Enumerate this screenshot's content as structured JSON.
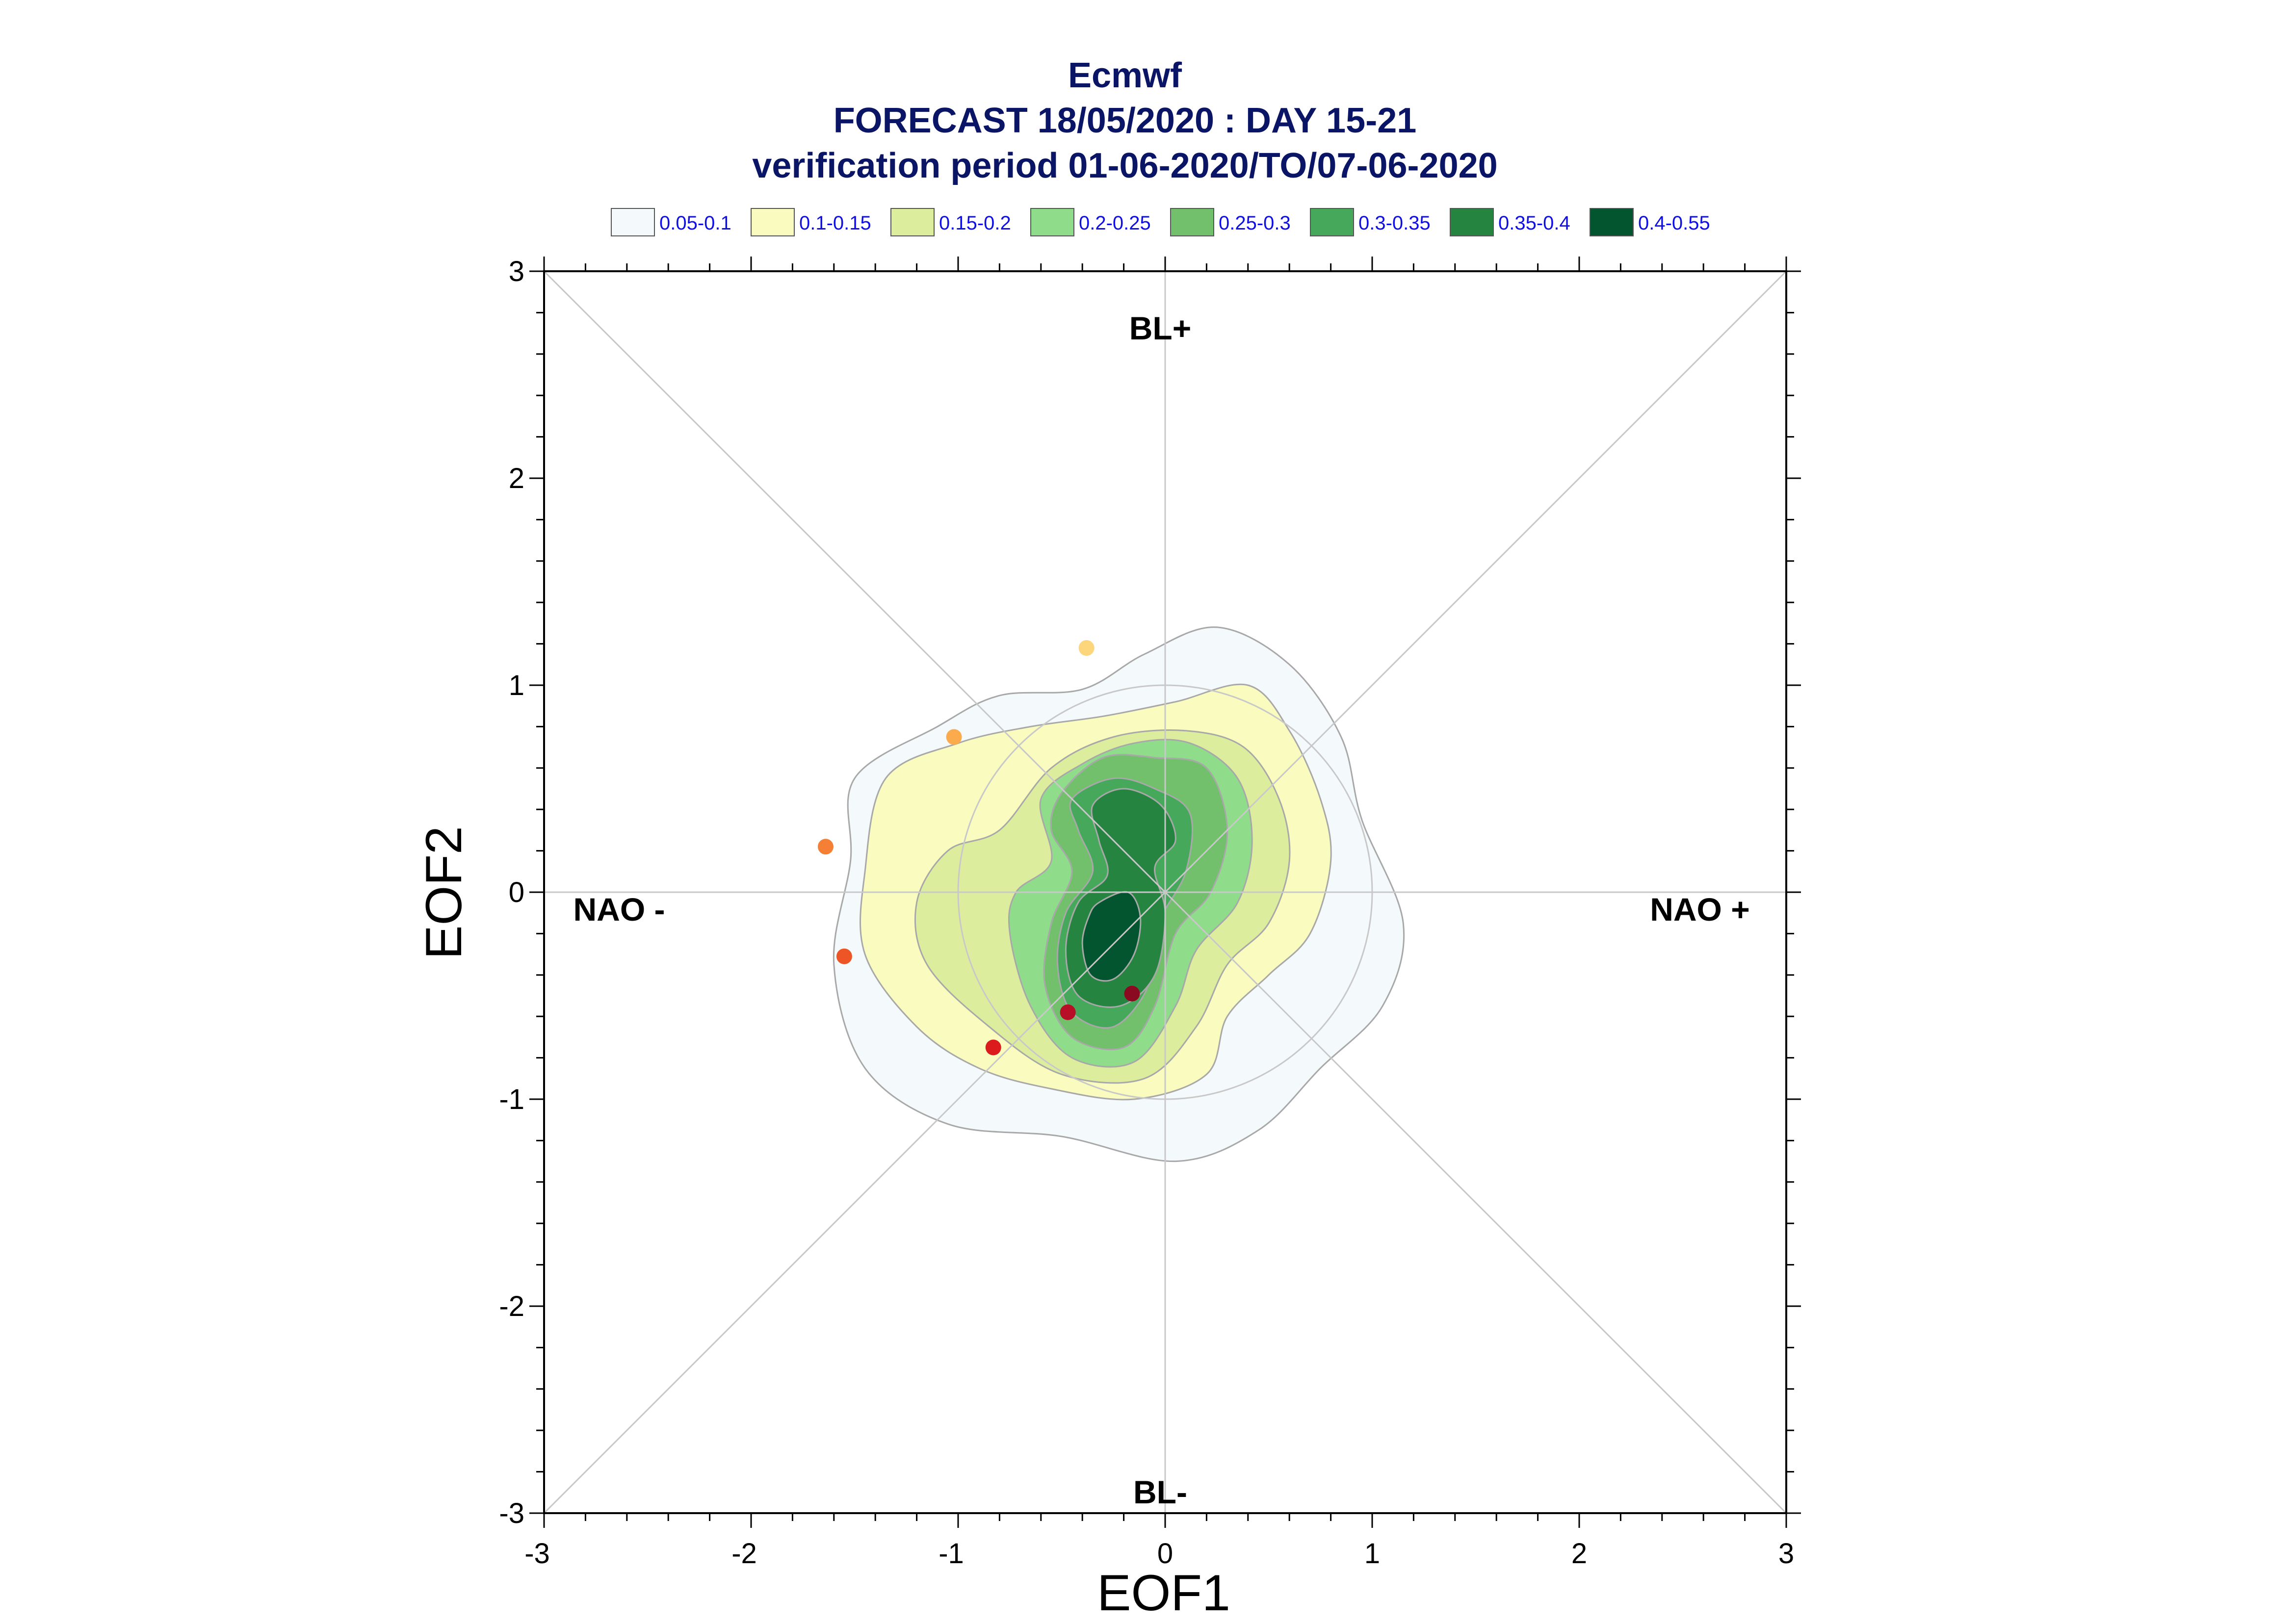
{
  "title": {
    "line1": "Ecmwf",
    "line2": "FORECAST 18/05/2020 : DAY 15-21",
    "line3": "verification period 01-06-2020/TO/07-06-2020"
  },
  "legend": [
    {
      "label": "0.05-0.1",
      "color": "#f4f9fb"
    },
    {
      "label": "0.1-0.15",
      "color": "#f9fbbf"
    },
    {
      "label": "0.15-0.2",
      "color": "#dcee9e"
    },
    {
      "label": "0.2-0.25",
      "color": "#8fdc8a"
    },
    {
      "label": "0.25-0.3",
      "color": "#72bf6c"
    },
    {
      "label": "0.3-0.35",
      "color": "#46a85a"
    },
    {
      "label": "0.35-0.4",
      "color": "#258440"
    },
    {
      "label": "0.4-0.55",
      "color": "#035530"
    }
  ],
  "regimes": {
    "top": "BL+",
    "bottom": "BL-",
    "left": "NAO -",
    "right": "NAO +"
  },
  "chart_data": {
    "type": "scatter",
    "xlabel": "EOF1",
    "ylabel": "EOF2",
    "xlim": [
      -3,
      3
    ],
    "ylim": [
      -3,
      3
    ],
    "xticks": [
      "-3",
      "-2",
      "-1",
      "0",
      "1",
      "2",
      "3"
    ],
    "yticks": [
      "-3",
      "-2",
      "-1",
      "0",
      "1",
      "2",
      "3"
    ],
    "reference_lines": [
      "x=0",
      "y=0",
      "y=x",
      "y=-x"
    ],
    "reference_circle_radius": 1,
    "density_levels": [
      {
        "range": "0.05-0.1",
        "color": "#f4f9fb",
        "contour": [
          [
            -1.5,
            0.55
          ],
          [
            -1.1,
            0.8
          ],
          [
            -0.8,
            0.95
          ],
          [
            -0.4,
            0.98
          ],
          [
            -0.1,
            1.15
          ],
          [
            0.25,
            1.28
          ],
          [
            0.6,
            1.1
          ],
          [
            0.85,
            0.75
          ],
          [
            0.95,
            0.35
          ],
          [
            1.15,
            -0.15
          ],
          [
            1.05,
            -0.55
          ],
          [
            0.75,
            -0.85
          ],
          [
            0.45,
            -1.15
          ],
          [
            0.05,
            -1.3
          ],
          [
            -0.5,
            -1.18
          ],
          [
            -1.05,
            -1.12
          ],
          [
            -1.45,
            -0.85
          ],
          [
            -1.6,
            -0.35
          ],
          [
            -1.52,
            0.15
          ]
        ]
      },
      {
        "range": "0.1-0.15",
        "color": "#f9fbbf",
        "contour": [
          [
            -1.35,
            0.55
          ],
          [
            -1.0,
            0.72
          ],
          [
            -0.65,
            0.8
          ],
          [
            -0.3,
            0.85
          ],
          [
            0.05,
            0.92
          ],
          [
            0.4,
            1.0
          ],
          [
            0.6,
            0.78
          ],
          [
            0.75,
            0.45
          ],
          [
            0.8,
            0.15
          ],
          [
            0.7,
            -0.2
          ],
          [
            0.5,
            -0.4
          ],
          [
            0.3,
            -0.6
          ],
          [
            0.2,
            -0.88
          ],
          [
            -0.15,
            -1.0
          ],
          [
            -0.55,
            -0.95
          ],
          [
            -0.9,
            -0.85
          ],
          [
            -1.2,
            -0.65
          ],
          [
            -1.45,
            -0.3
          ],
          [
            -1.45,
            0.1
          ]
        ]
      },
      {
        "range": "0.15-0.2",
        "color": "#dcee9e",
        "contour": [
          [
            -0.8,
            0.3
          ],
          [
            -0.55,
            0.6
          ],
          [
            -0.25,
            0.75
          ],
          [
            0.1,
            0.78
          ],
          [
            0.38,
            0.7
          ],
          [
            0.55,
            0.45
          ],
          [
            0.6,
            0.15
          ],
          [
            0.5,
            -0.15
          ],
          [
            0.3,
            -0.35
          ],
          [
            0.15,
            -0.65
          ],
          [
            -0.1,
            -0.9
          ],
          [
            -0.5,
            -0.88
          ],
          [
            -0.85,
            -0.65
          ],
          [
            -1.15,
            -0.35
          ],
          [
            -1.2,
            -0.05
          ],
          [
            -1.05,
            0.2
          ]
        ]
      },
      {
        "range": "0.2-0.25",
        "color": "#8fdc8a",
        "contour": [
          [
            -0.6,
            0.45
          ],
          [
            -0.4,
            0.62
          ],
          [
            -0.15,
            0.72
          ],
          [
            0.12,
            0.72
          ],
          [
            0.35,
            0.55
          ],
          [
            0.42,
            0.25
          ],
          [
            0.35,
            -0.05
          ],
          [
            0.15,
            -0.28
          ],
          [
            0.05,
            -0.55
          ],
          [
            -0.15,
            -0.82
          ],
          [
            -0.45,
            -0.8
          ],
          [
            -0.65,
            -0.55
          ],
          [
            -0.75,
            -0.2
          ],
          [
            -0.72,
            0.0
          ],
          [
            -0.55,
            0.15
          ]
        ]
      },
      {
        "range": "0.25-0.3",
        "color": "#72bf6c",
        "contour": [
          [
            -0.5,
            0.48
          ],
          [
            -0.3,
            0.65
          ],
          [
            -0.05,
            0.65
          ],
          [
            0.2,
            0.6
          ],
          [
            0.3,
            0.3
          ],
          [
            0.22,
            0.0
          ],
          [
            0.05,
            -0.2
          ],
          [
            -0.05,
            -0.55
          ],
          [
            -0.2,
            -0.75
          ],
          [
            -0.45,
            -0.7
          ],
          [
            -0.58,
            -0.45
          ],
          [
            -0.55,
            -0.15
          ],
          [
            -0.45,
            0.1
          ],
          [
            -0.55,
            0.3
          ]
        ]
      },
      {
        "range": "0.3-0.35",
        "color": "#46a85a",
        "contour": [
          [
            -0.45,
            0.45
          ],
          [
            -0.25,
            0.55
          ],
          [
            -0.05,
            0.5
          ],
          [
            0.12,
            0.38
          ],
          [
            0.1,
            0.1
          ],
          [
            -0.03,
            -0.15
          ],
          [
            -0.08,
            -0.45
          ],
          [
            -0.25,
            -0.65
          ],
          [
            -0.45,
            -0.58
          ],
          [
            -0.52,
            -0.35
          ],
          [
            -0.48,
            -0.1
          ],
          [
            -0.35,
            0.1
          ],
          [
            -0.42,
            0.3
          ]
        ]
      },
      {
        "range": "0.35-0.4",
        "color": "#258440",
        "contour": [
          [
            -0.35,
            0.42
          ],
          [
            -0.2,
            0.5
          ],
          [
            -0.02,
            0.42
          ],
          [
            0.05,
            0.25
          ],
          [
            -0.05,
            0.12
          ],
          [
            0.0,
            -0.1
          ],
          [
            -0.05,
            -0.4
          ],
          [
            -0.22,
            -0.55
          ],
          [
            -0.42,
            -0.5
          ],
          [
            -0.48,
            -0.28
          ],
          [
            -0.42,
            -0.05
          ],
          [
            -0.28,
            0.08
          ],
          [
            -0.32,
            0.25
          ]
        ]
      },
      {
        "range": "0.4-0.55",
        "color": "#035530",
        "contour": [
          [
            -0.32,
            -0.05
          ],
          [
            -0.18,
            0.0
          ],
          [
            -0.12,
            -0.12
          ],
          [
            -0.15,
            -0.3
          ],
          [
            -0.25,
            -0.42
          ],
          [
            -0.36,
            -0.4
          ],
          [
            -0.4,
            -0.25
          ],
          [
            -0.37,
            -0.12
          ]
        ]
      }
    ],
    "points": [
      {
        "x": -0.38,
        "y": 1.18,
        "color": "#fdd57a"
      },
      {
        "x": -1.02,
        "y": 0.75,
        "color": "#fbab4c"
      },
      {
        "x": -1.64,
        "y": 0.22,
        "color": "#f57f35"
      },
      {
        "x": -1.55,
        "y": -0.31,
        "color": "#ee5526"
      },
      {
        "x": -0.83,
        "y": -0.75,
        "color": "#dc1c1c"
      },
      {
        "x": -0.47,
        "y": -0.58,
        "color": "#b80f28"
      },
      {
        "x": -0.16,
        "y": -0.49,
        "color": "#8a0a22"
      }
    ]
  }
}
